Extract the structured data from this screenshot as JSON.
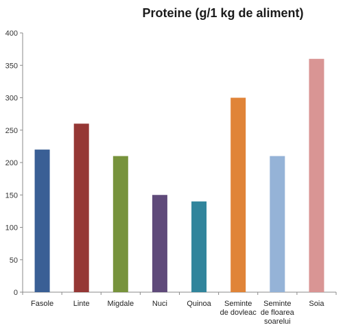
{
  "chart_data": {
    "type": "bar",
    "title": "Proteine (g/1 kg de aliment)",
    "xlabel": "",
    "ylabel": "",
    "categories": [
      [
        "Fasole"
      ],
      [
        "Linte"
      ],
      [
        "Migdale"
      ],
      [
        "Nuci"
      ],
      [
        "Quinoa"
      ],
      [
        "Seminte",
        "de dovleac"
      ],
      [
        "Seminte",
        "de floarea",
        "soarelui"
      ],
      [
        "Soia"
      ]
    ],
    "values": [
      220,
      260,
      210,
      150,
      140,
      300,
      210,
      360
    ],
    "colors": [
      "#3A5F95",
      "#953735",
      "#77933C",
      "#5F4A7A",
      "#31859C",
      "#E08438",
      "#95B3D7",
      "#D99594"
    ],
    "ylim": [
      0,
      400
    ],
    "yticks": [
      0,
      50,
      100,
      150,
      200,
      250,
      300,
      350,
      400
    ],
    "grid": false,
    "legend": "none"
  }
}
